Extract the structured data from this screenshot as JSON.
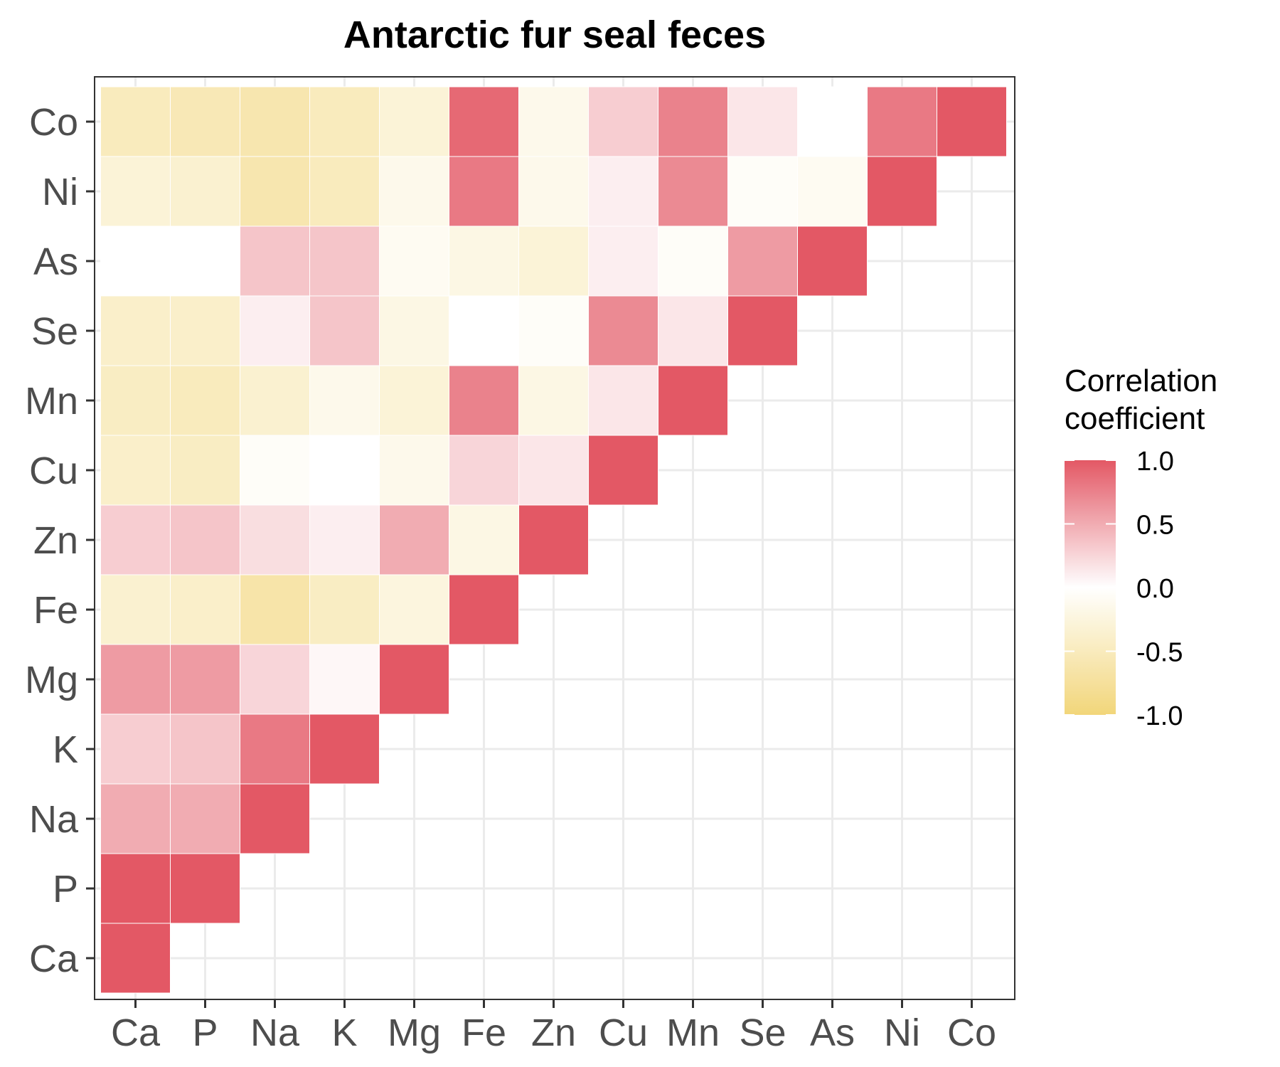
{
  "chart_data": {
    "type": "heatmap",
    "title": "Antarctic fur seal feces",
    "xlabel": "",
    "ylabel": "",
    "x_categories": [
      "Ca",
      "P",
      "Na",
      "K",
      "Mg",
      "Fe",
      "Zn",
      "Cu",
      "Mn",
      "Se",
      "As",
      "Ni",
      "Co"
    ],
    "y_categories": [
      "Ca",
      "P",
      "Na",
      "K",
      "Mg",
      "Fe",
      "Zn",
      "Cu",
      "Mn",
      "Se",
      "As",
      "Ni",
      "Co"
    ],
    "matrix": [
      [
        1.0,
        1.0,
        0.5,
        0.3,
        0.6,
        -0.35,
        0.3,
        -0.4,
        -0.45,
        -0.4,
        0.0,
        -0.3,
        -0.5
      ],
      [
        null,
        1.0,
        0.5,
        0.35,
        0.6,
        -0.4,
        0.35,
        -0.45,
        -0.5,
        -0.4,
        0.0,
        -0.35,
        -0.55
      ],
      [
        null,
        null,
        1.0,
        0.8,
        0.25,
        -0.65,
        0.2,
        -0.05,
        -0.35,
        0.1,
        0.35,
        -0.6,
        -0.6
      ],
      [
        null,
        null,
        null,
        1.0,
        0.05,
        -0.45,
        0.1,
        0.0,
        -0.15,
        0.35,
        0.35,
        -0.5,
        -0.5
      ],
      [
        null,
        null,
        null,
        null,
        1.0,
        -0.25,
        0.5,
        -0.15,
        -0.3,
        -0.2,
        -0.1,
        -0.15,
        -0.3
      ],
      [
        null,
        null,
        null,
        null,
        null,
        1.0,
        -0.2,
        0.25,
        0.75,
        0.0,
        -0.2,
        0.8,
        0.9
      ],
      [
        null,
        null,
        null,
        null,
        null,
        null,
        1.0,
        0.15,
        -0.2,
        -0.05,
        -0.3,
        -0.15,
        -0.15
      ],
      [
        null,
        null,
        null,
        null,
        null,
        null,
        null,
        1.0,
        0.15,
        0.7,
        0.1,
        0.1,
        0.3
      ],
      [
        null,
        null,
        null,
        null,
        null,
        null,
        null,
        null,
        1.0,
        0.15,
        -0.05,
        0.7,
        0.75
      ],
      [
        null,
        null,
        null,
        null,
        null,
        null,
        null,
        null,
        null,
        1.0,
        0.6,
        -0.05,
        0.15
      ],
      [
        null,
        null,
        null,
        null,
        null,
        null,
        null,
        null,
        null,
        null,
        1.0,
        -0.1,
        0.0
      ],
      [
        null,
        null,
        null,
        null,
        null,
        null,
        null,
        null,
        null,
        null,
        null,
        1.0,
        0.8
      ],
      [
        null,
        null,
        null,
        null,
        null,
        null,
        null,
        null,
        null,
        null,
        null,
        null,
        1.0
      ]
    ],
    "matrix_note": "",
    "color_scale": {
      "low": "#f2d67a",
      "mid": "#ffffff",
      "high": "#e35865",
      "min": -1.0,
      "max": 1.0
    },
    "legend": {
      "title_lines": [
        "Correlation",
        "coefficient"
      ],
      "breaks": [
        1.0,
        0.5,
        0.0,
        -0.5,
        -1.0
      ],
      "break_labels": [
        "1.0",
        "0.5",
        "0.0",
        "-0.5",
        "-1.0"
      ],
      "position": "right"
    },
    "grid": true
  }
}
